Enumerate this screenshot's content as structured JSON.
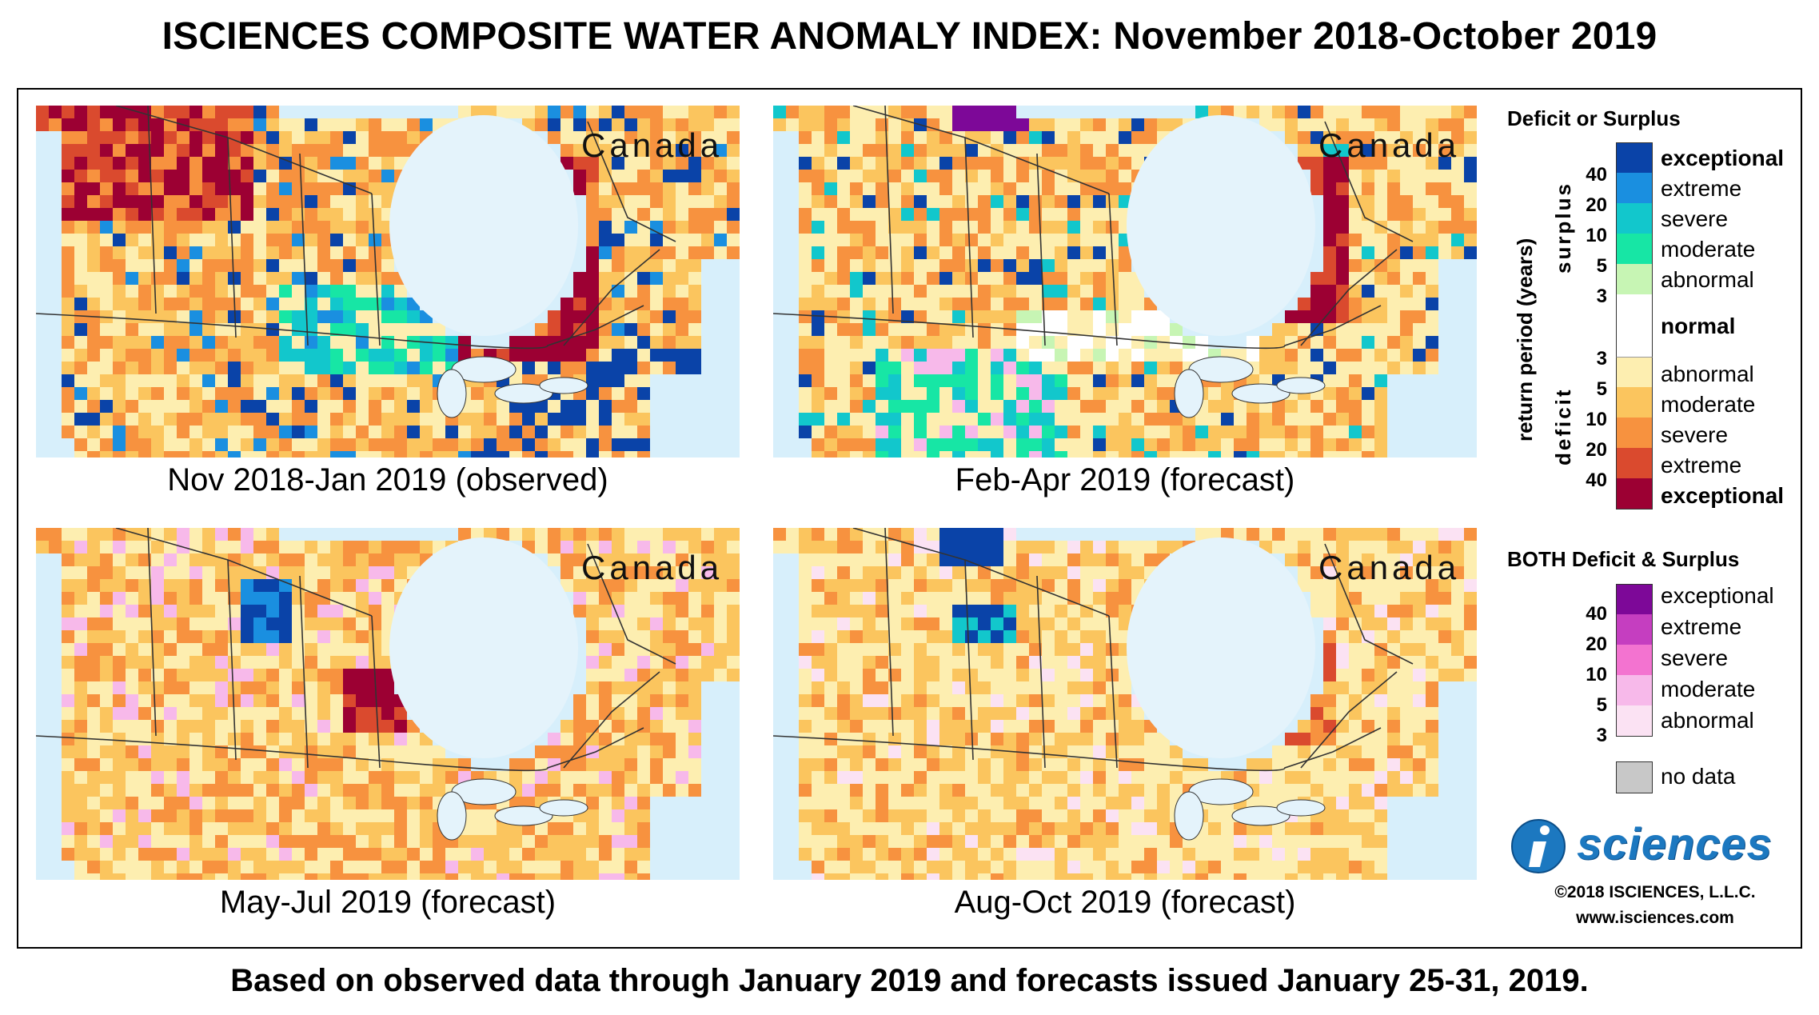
{
  "title": "ISCIENCES COMPOSITE WATER ANOMALY INDEX: November 2018-October 2019",
  "panels": [
    {
      "label": "Nov 2018-Jan 2019 (observed)",
      "region": "Canada",
      "scheme": 0
    },
    {
      "label": "Feb-Apr 2019 (forecast)",
      "region": "Canada",
      "scheme": 1
    },
    {
      "label": "May-Jul 2019 (forecast)",
      "region": "Canada",
      "scheme": 2
    },
    {
      "label": "Aug-Oct 2019 (forecast)",
      "region": "Canada",
      "scheme": 3
    }
  ],
  "legend": {
    "deficit_surplus_title": "Deficit or Surplus",
    "axis_label": "return period (years)",
    "surplus_label": "surplus",
    "deficit_label": "deficit",
    "surplus": [
      {
        "label": "exceptional",
        "color": "#0a43a8",
        "bold": true
      },
      {
        "label": "extreme",
        "color": "#1a8fe0",
        "bold": false
      },
      {
        "label": "severe",
        "color": "#12c7cc",
        "bold": false
      },
      {
        "label": "moderate",
        "color": "#17e6a5",
        "bold": false
      },
      {
        "label": "abnormal",
        "color": "#c7f5b4",
        "bold": false
      }
    ],
    "normal": {
      "label": "normal",
      "color": "#ffffff"
    },
    "deficit": [
      {
        "label": "abnormal",
        "color": "#fdeeb0",
        "bold": false
      },
      {
        "label": "moderate",
        "color": "#fbc55e",
        "bold": false
      },
      {
        "label": "severe",
        "color": "#f7923f",
        "bold": false
      },
      {
        "label": "extreme",
        "color": "#da4a2e",
        "bold": false
      },
      {
        "label": "exceptional",
        "color": "#9c0033",
        "bold": true
      }
    ],
    "surplus_ticks": [
      "40",
      "20",
      "10",
      "5",
      "3"
    ],
    "deficit_ticks": [
      "3",
      "5",
      "10",
      "20",
      "40"
    ],
    "both_title": "BOTH Deficit & Surplus",
    "both": [
      {
        "label": "exceptional",
        "color": "#7d0898"
      },
      {
        "label": "extreme",
        "color": "#c53ec0"
      },
      {
        "label": "severe",
        "color": "#f373d0"
      },
      {
        "label": "moderate",
        "color": "#f7b9ea"
      },
      {
        "label": "abnormal",
        "color": "#fbe2f3"
      }
    ],
    "both_ticks": [
      "40",
      "20",
      "10",
      "5",
      "3"
    ],
    "no_data": {
      "label": "no data",
      "color": "#c8c8c8"
    }
  },
  "brand": {
    "logo_text": "isciences",
    "copyright": "©2018 ISCIENCES, L.L.C.",
    "website": "www.isciences.com",
    "logo_color": "#1c78c0"
  },
  "footer": "Based on observed data through January 2019 and forecasts issued January 25-31, 2019.",
  "map_colors": {
    "water": "#d7effb",
    "bay": "#e4f3fb",
    "boundary": "#333333"
  }
}
